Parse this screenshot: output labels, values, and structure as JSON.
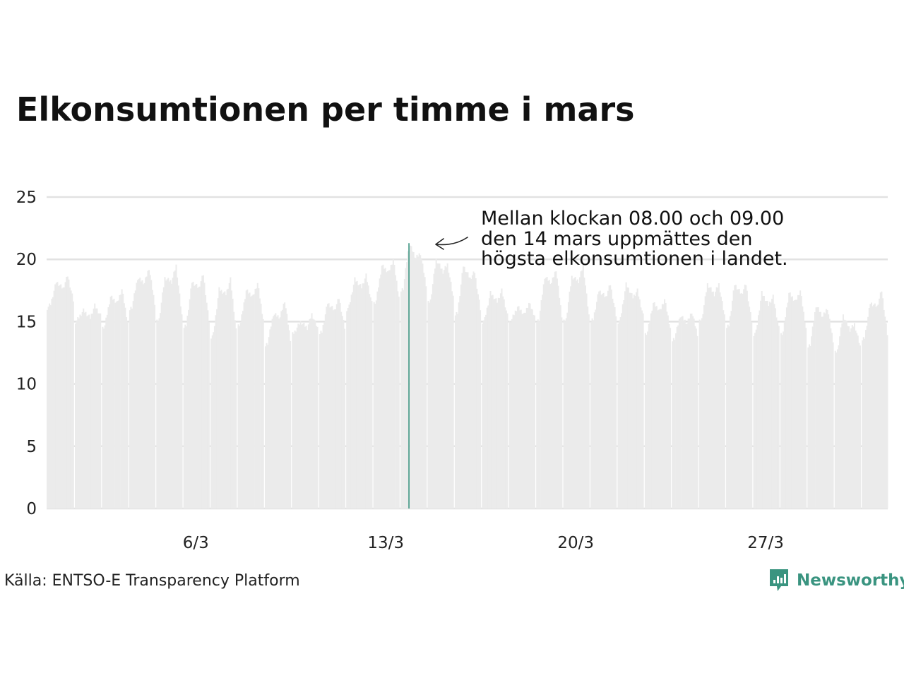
{
  "title": "Elkonsumtionen per timme i mars",
  "source": "Källa: ENTSO-E Transparency Platform",
  "brand": {
    "name": "Newsworthy",
    "icon": "newsworthy-logo-icon",
    "color": "#3a9480"
  },
  "colors": {
    "bars": "#ebebeb",
    "highlight": "#3a9480",
    "grid": "#e2e2e2"
  },
  "annotation": {
    "lines": [
      "Mellan klockan 08.00 och 09.00",
      "den 14 mars uppmättes den",
      "högsta elkonsumtionen i landet."
    ]
  },
  "chart_data": {
    "type": "bar",
    "title": "Elkonsumtionen per timme i mars",
    "xlabel": "",
    "ylabel": "",
    "ylim": [
      0,
      25
    ],
    "yticks": [
      0,
      5,
      10,
      15,
      20,
      25
    ],
    "y_tick_labels": [
      "0",
      "5",
      "10",
      "15",
      "20",
      "25"
    ],
    "x_tick_labels": [
      "6/3",
      "13/3",
      "20/3",
      "27/3"
    ],
    "x_tick_days": [
      6,
      13,
      20,
      27
    ],
    "days": 31,
    "hours_per_day": 24,
    "grid": true,
    "highlight": {
      "day": 14,
      "hour": 8,
      "value": 21.3
    },
    "daily": [
      {
        "day": 1,
        "night": 16.7,
        "morning": 18.2,
        "evening": 18.7
      },
      {
        "day": 2,
        "night": 15.5,
        "morning": 15.9,
        "evening": 16.3
      },
      {
        "day": 3,
        "night": 15.0,
        "morning": 17.0,
        "evening": 17.6
      },
      {
        "day": 4,
        "night": 16.5,
        "morning": 18.5,
        "evening": 19.3
      },
      {
        "day": 5,
        "night": 15.5,
        "morning": 18.5,
        "evening": 19.5
      },
      {
        "day": 6,
        "night": 15.0,
        "morning": 18.2,
        "evening": 18.8
      },
      {
        "day": 7,
        "night": 14.3,
        "morning": 17.6,
        "evening": 18.4
      },
      {
        "day": 8,
        "night": 15.2,
        "morning": 17.5,
        "evening": 18.1
      },
      {
        "day": 9,
        "night": 13.6,
        "morning": 15.6,
        "evening": 16.7
      },
      {
        "day": 10,
        "night": 14.5,
        "morning": 15.0,
        "evening": 15.6
      },
      {
        "day": 11,
        "night": 14.5,
        "morning": 16.5,
        "evening": 16.9
      },
      {
        "day": 12,
        "night": 16.5,
        "morning": 18.4,
        "evening": 18.7
      },
      {
        "day": 13,
        "night": 17.0,
        "morning": 19.5,
        "evening": 20.0
      },
      {
        "day": 14,
        "night": 18.0,
        "morning": 21.3,
        "evening": 20.5
      },
      {
        "day": 15,
        "night": 17.0,
        "morning": 20.0,
        "evening": 19.6
      },
      {
        "day": 16,
        "night": 16.0,
        "morning": 19.5,
        "evening": 19.0
      },
      {
        "day": 17,
        "night": 15.5,
        "morning": 17.3,
        "evening": 17.5
      },
      {
        "day": 18,
        "night": 15.5,
        "morning": 16.2,
        "evening": 16.5
      },
      {
        "day": 19,
        "night": 15.5,
        "morning": 18.6,
        "evening": 19.2
      },
      {
        "day": 20,
        "night": 15.5,
        "morning": 18.6,
        "evening": 19.5
      },
      {
        "day": 21,
        "night": 15.5,
        "morning": 17.5,
        "evening": 18.0
      },
      {
        "day": 22,
        "night": 15.5,
        "morning": 18.0,
        "evening": 17.5
      },
      {
        "day": 23,
        "night": 14.5,
        "morning": 16.5,
        "evening": 16.8
      },
      {
        "day": 24,
        "night": 14.0,
        "morning": 15.5,
        "evening": 15.8
      },
      {
        "day": 25,
        "night": 15.5,
        "morning": 18.0,
        "evening": 18.0
      },
      {
        "day": 26,
        "night": 15.0,
        "morning": 18.0,
        "evening": 18.0
      },
      {
        "day": 27,
        "night": 14.5,
        "morning": 17.3,
        "evening": 17.0
      },
      {
        "day": 28,
        "night": 14.5,
        "morning": 17.3,
        "evening": 17.5
      },
      {
        "day": 29,
        "night": 13.5,
        "morning": 16.3,
        "evening": 16.1
      },
      {
        "day": 30,
        "night": 13.0,
        "morning": 15.5,
        "evening": 14.8
      },
      {
        "day": 31,
        "night": 14.0,
        "morning": 16.5,
        "evening": 17.5
      }
    ]
  }
}
